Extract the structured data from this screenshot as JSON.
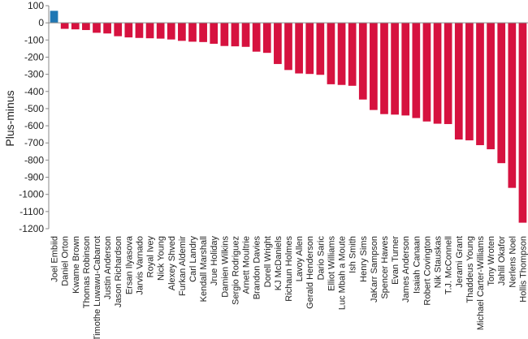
{
  "chart_data": {
    "type": "bar",
    "title": "",
    "xlabel": "",
    "ylabel": "Plus-minus",
    "ylim": [
      -1200,
      100
    ],
    "yticks": [
      100,
      0,
      -100,
      -200,
      -300,
      -400,
      -500,
      -600,
      -700,
      -800,
      -900,
      -1000,
      -1100,
      -1200
    ],
    "grid": false,
    "legend": "none",
    "colors": {
      "positive": "#1f77b4",
      "negative": "#d6123f",
      "axis": "#888888"
    },
    "categories": [
      "Joel Embiid",
      "Daniel Orton",
      "Kwame Brown",
      "Thomas Robinson",
      "Timothe Luwawu-Cabarrot",
      "Justin Anderson",
      "Jason Richardson",
      "Ersan Ilyasova",
      "Jarvis Varnado",
      "Royal Ivey",
      "Nick Young",
      "Alexey Shved",
      "Furkan Aldemir",
      "Carl Landry",
      "Kendall Marshall",
      "Jrue Holiday",
      "Damien Wilkins",
      "Sergio Rodriguez",
      "Arnett Moultrie",
      "Brandon Davies",
      "Dorell Wright",
      "KJ McDaniels",
      "Richaun Holmes",
      "Lavoy Allen",
      "Gerald Henderson",
      "Dario Saric",
      "Elliot Williams",
      "Luc Mbah a Moute",
      "Ish Smith",
      "Henry Sims",
      "JaKarr Sampson",
      "Spencer Hawes",
      "Evan Turner",
      "James Anderson",
      "Isaiah Canaan",
      "Robert Covington",
      "Nik Stauskas",
      "T.J. McConnell",
      "Jerami Grant",
      "Thaddeus Young",
      "Michael Carter-Williams",
      "Tony Wroten",
      "Jahlil Okafor",
      "Nerlens Noel",
      "Hollis Thompson"
    ],
    "values": [
      70,
      -35,
      -38,
      -42,
      -58,
      -62,
      -78,
      -85,
      -88,
      -90,
      -92,
      -97,
      -105,
      -110,
      -112,
      -122,
      -135,
      -137,
      -140,
      -168,
      -175,
      -240,
      -275,
      -295,
      -298,
      -303,
      -358,
      -362,
      -367,
      -447,
      -508,
      -532,
      -535,
      -540,
      -555,
      -575,
      -588,
      -590,
      -680,
      -685,
      -713,
      -737,
      -818,
      -962,
      -1165
    ]
  }
}
